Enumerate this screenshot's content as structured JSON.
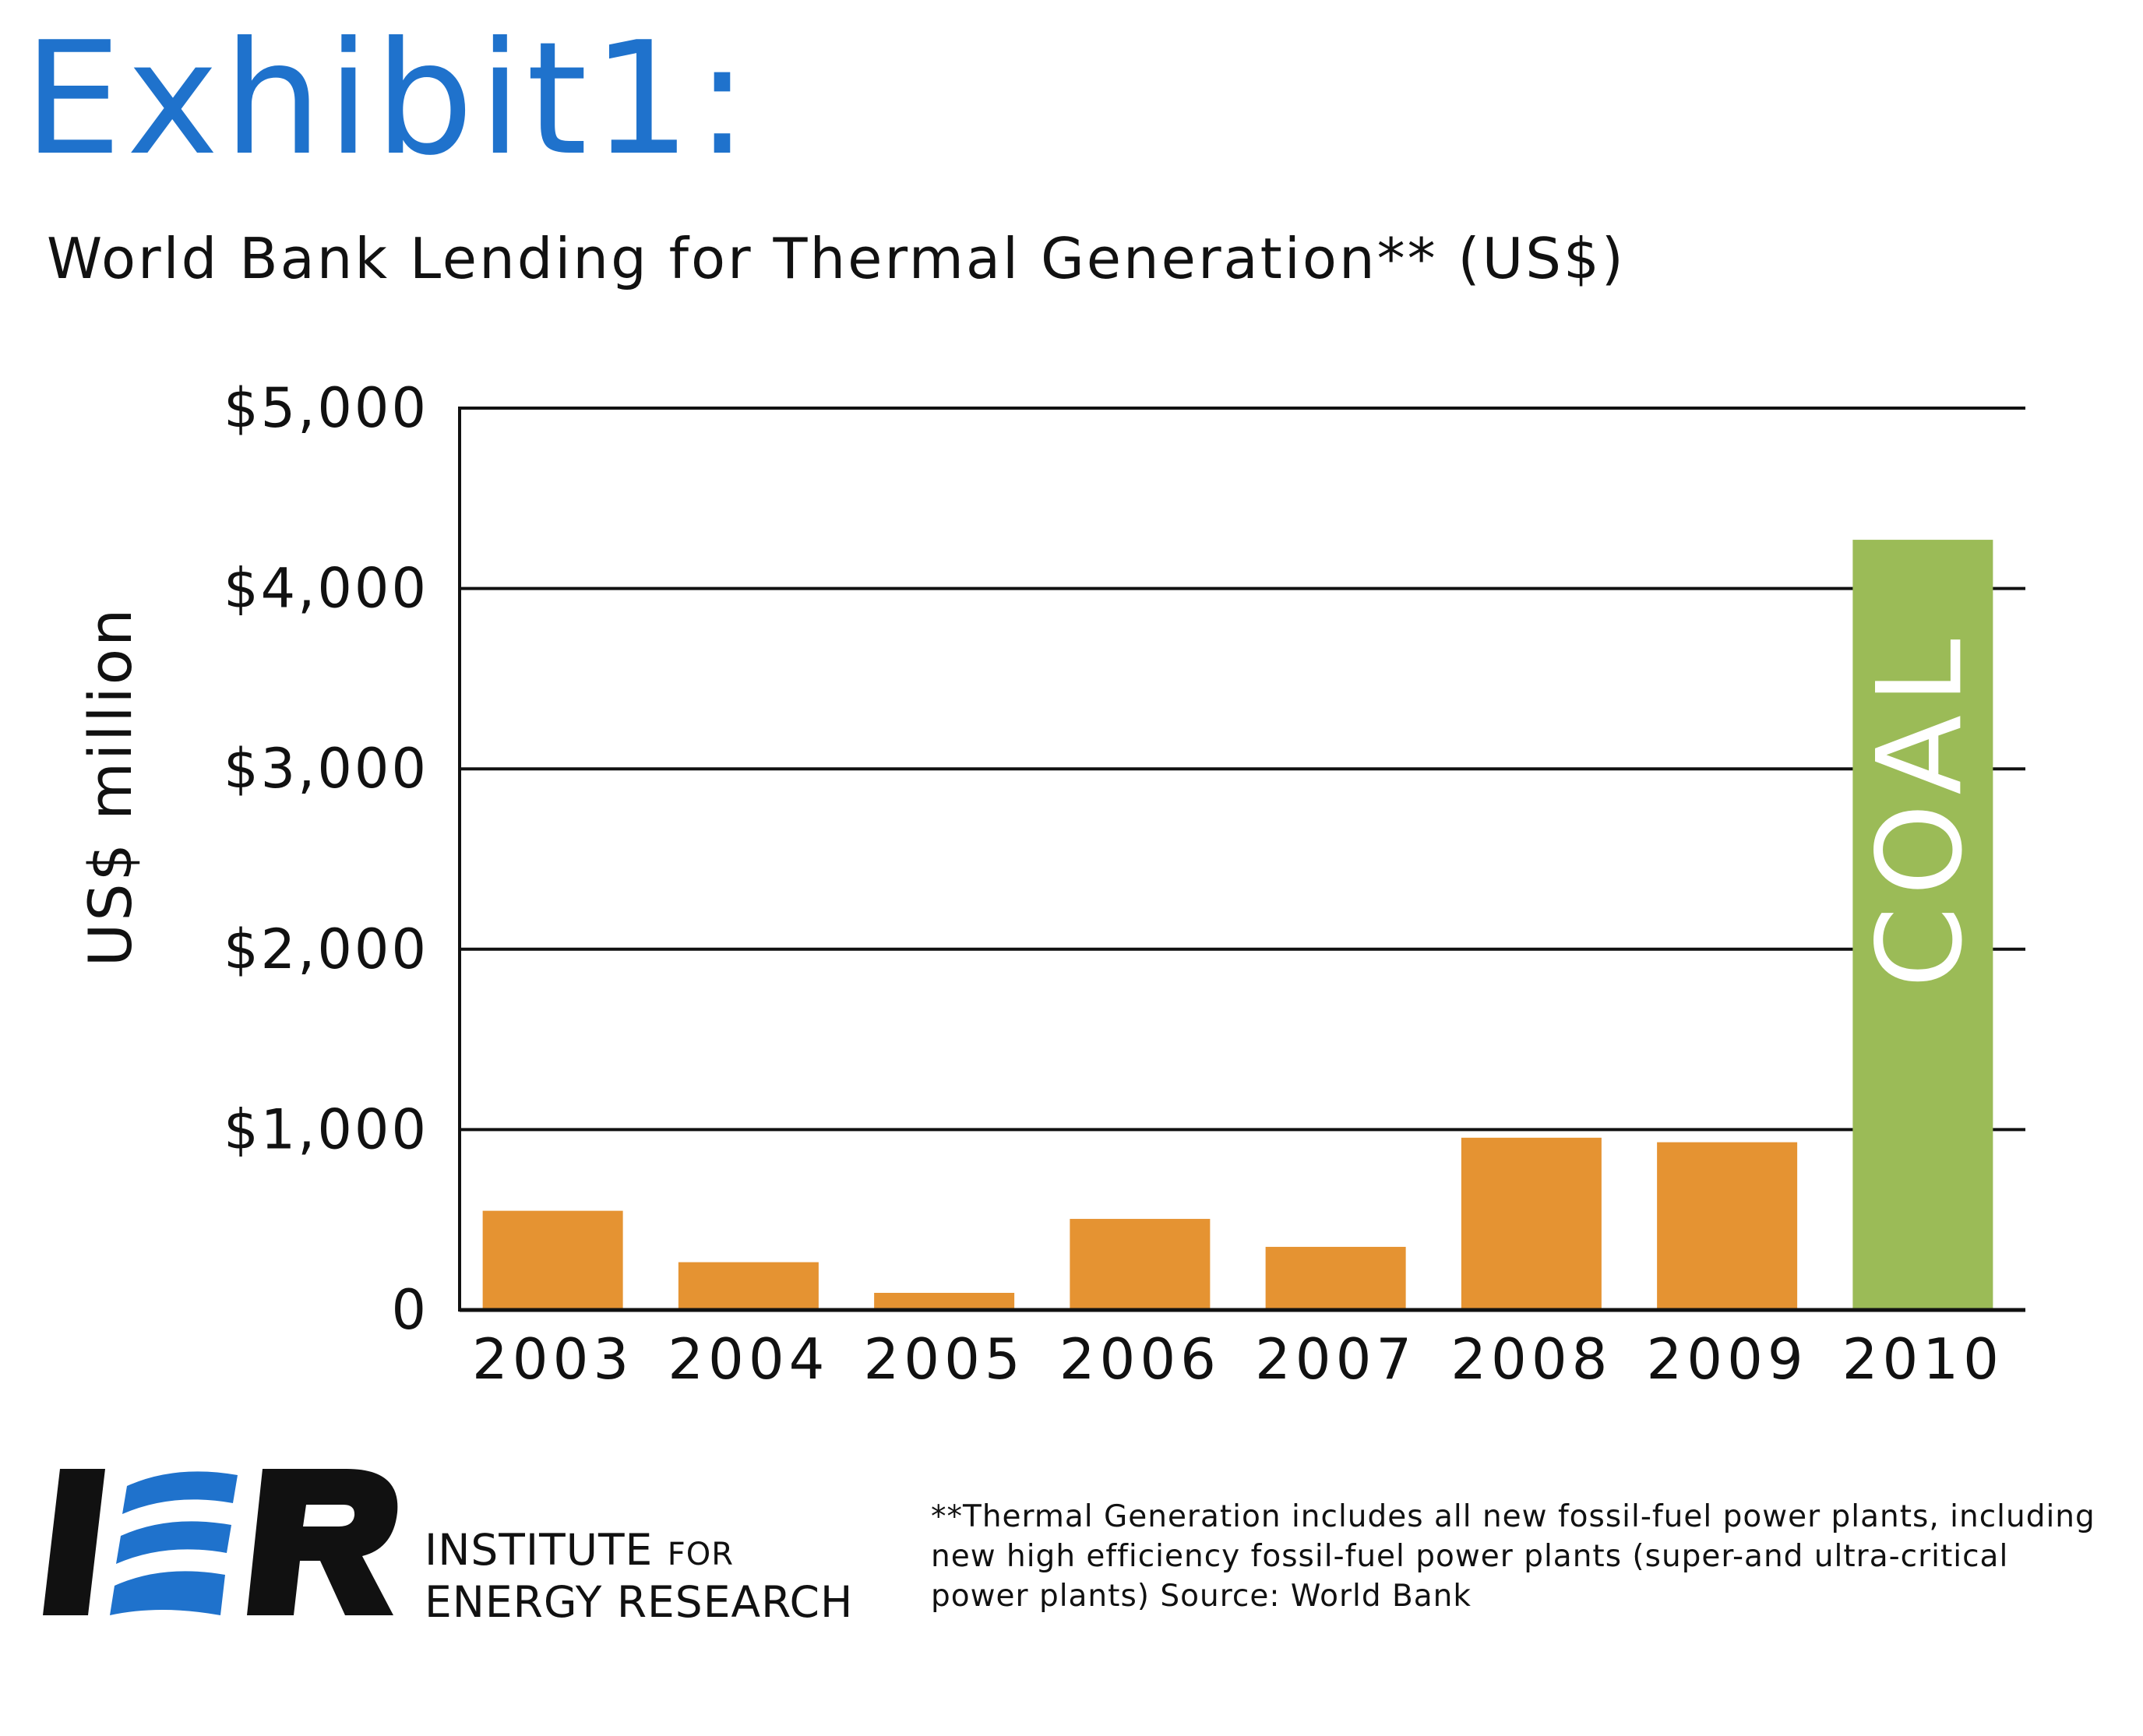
{
  "header": {
    "exhibit_title": "Exhibit1:",
    "subtitle": "World Bank Lending for Thermal Generation** (US$)"
  },
  "colors": {
    "title_blue": "#1f72cc",
    "bar_orange": "#e59332",
    "coal_green": "#9bbb57",
    "logo_black": "#111111",
    "logo_blue": "#1f72cc"
  },
  "chart_data": {
    "type": "bar",
    "categories": [
      "2003",
      "2004",
      "2005",
      "2006",
      "2007",
      "2008",
      "2009",
      "2010"
    ],
    "values": [
      550,
      265,
      95,
      505,
      350,
      955,
      930,
      4270
    ],
    "bar_colors": [
      "#e59332",
      "#e59332",
      "#e59332",
      "#e59332",
      "#e59332",
      "#e59332",
      "#e59332",
      "#9bbb57"
    ],
    "bar_labels": [
      "",
      "",
      "",
      "",
      "",
      "",
      "",
      "COAL"
    ],
    "ylabel": "US$ million",
    "xlabel": "",
    "ylim": [
      0,
      5000
    ],
    "yticks": [
      0,
      1000,
      2000,
      3000,
      4000,
      5000
    ],
    "ytick_labels": [
      "0",
      "$1,000",
      "$2,000",
      "$3,000",
      "$4,000",
      "$5,000"
    ],
    "grid": true
  },
  "logo": {
    "mark": "IER",
    "org_line_1": "INSTITUTE",
    "org_line_1_small": "FOR",
    "org_line_2": "ENERGY RESEARCH"
  },
  "footnote": {
    "line_1": "**Thermal Generation includes all new fossil-fuel power plants, including",
    "line_2": "new high efficiency fossil-fuel power plants (super-and ultra-critical",
    "line_3": "power plants) Source: World Bank"
  }
}
